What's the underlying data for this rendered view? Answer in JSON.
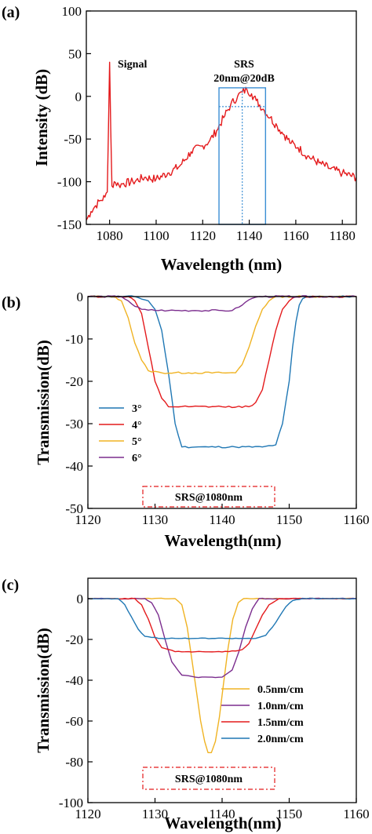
{
  "chart_data": [
    {
      "type": "line",
      "panel_label": "(a)",
      "xlabel": "Wavelength (nm)",
      "ylabel": "Intensity (dB)",
      "xlim": [
        1070,
        1186
      ],
      "ylim": [
        -150,
        100
      ],
      "xticks": [
        1080,
        1100,
        1120,
        1140,
        1160,
        1180
      ],
      "yticks": [
        -150,
        -100,
        -50,
        0,
        50,
        100
      ],
      "grid": false,
      "series": [
        {
          "color": "#e41a1c",
          "x": [
            1070,
            1072,
            1074,
            1076,
            1078,
            1079,
            1079.5,
            1080,
            1080.5,
            1081,
            1082,
            1084,
            1086,
            1090,
            1095,
            1100,
            1105,
            1110,
            1115,
            1120,
            1123,
            1126,
            1129,
            1132,
            1135,
            1137,
            1139,
            1141,
            1143,
            1146,
            1149,
            1152,
            1155,
            1158,
            1161,
            1165,
            1170,
            1175,
            1180,
            1186
          ],
          "y": [
            -145,
            -135,
            -128,
            -122,
            -118,
            -112,
            -40,
            40,
            -40,
            -105,
            -100,
            -104,
            -102,
            -100,
            -95,
            -97,
            -90,
            -82,
            -65,
            -58,
            -52,
            -40,
            -25,
            -10,
            0,
            5,
            8,
            3,
            -5,
            -15,
            -25,
            -35,
            -45,
            -55,
            -60,
            -70,
            -78,
            -85,
            -90,
            -95
          ]
        }
      ],
      "annotations": [
        "Signal",
        "SRS",
        "20nm@20dB"
      ],
      "box_nm": [
        1127,
        1147
      ],
      "center_nm": 1137,
      "dashed_level_db": -12
    },
    {
      "type": "line",
      "panel_label": "(b)",
      "xlabel": "Wavelength(nm)",
      "ylabel": "Transmission(dB)",
      "xlim": [
        1120,
        1160
      ],
      "ylim": [
        -50,
        0
      ],
      "xticks": [
        1120,
        1130,
        1140,
        1150,
        1160
      ],
      "yticks": [
        0,
        -10,
        -20,
        -30,
        -40,
        -50
      ],
      "grid": false,
      "legend_position": "left-middle",
      "series": [
        {
          "name": "3°",
          "color": "#1f77b4",
          "x": [
            1120,
            1127,
            1129,
            1130,
            1131,
            1132,
            1133,
            1134,
            1138,
            1142,
            1146,
            1148,
            1149,
            1150,
            1150.5,
            1151,
            1151.5,
            1152,
            1153,
            1160
          ],
          "y": [
            0,
            0,
            -1,
            -3,
            -8,
            -18,
            -30,
            -35.5,
            -35.5,
            -35.5,
            -35.5,
            -35,
            -30,
            -20,
            -12,
            -6,
            -2,
            -0.5,
            0,
            0
          ]
        },
        {
          "name": "4°",
          "color": "#e41a1c",
          "x": [
            1120,
            1126,
            1127,
            1128,
            1129,
            1130,
            1131,
            1132,
            1135,
            1140,
            1144,
            1145,
            1146,
            1147,
            1148,
            1149,
            1150,
            1151,
            1160
          ],
          "y": [
            0,
            0,
            -1,
            -4,
            -12,
            -20,
            -24,
            -26,
            -26,
            -26,
            -26,
            -25,
            -22,
            -15,
            -8,
            -3,
            -1,
            0,
            0
          ]
        },
        {
          "name": "5°",
          "color": "#f0b323",
          "x": [
            1120,
            1124,
            1125,
            1126,
            1127,
            1128,
            1129,
            1131,
            1135,
            1140,
            1142,
            1143,
            1144,
            1145,
            1146,
            1147,
            1148,
            1160
          ],
          "y": [
            0,
            0,
            -1,
            -5,
            -11,
            -15,
            -17.5,
            -18,
            -18,
            -18,
            -18,
            -16,
            -12,
            -7,
            -3,
            -1,
            0,
            0
          ]
        },
        {
          "name": "6°",
          "color": "#7b2d8e",
          "x": [
            1120,
            1125,
            1126,
            1127,
            1128,
            1129,
            1132,
            1136,
            1140,
            1141.5,
            1142.5,
            1143.5,
            1144.5,
            1145.5,
            1160
          ],
          "y": [
            0,
            0,
            -1,
            -2.3,
            -3,
            -3.2,
            -3.3,
            -3.3,
            -3.3,
            -3.3,
            -2.5,
            -1.3,
            -0.4,
            0,
            0
          ]
        }
      ],
      "annotation": "SRS@1080nm",
      "box_nm": [
        1128,
        1148
      ]
    },
    {
      "type": "line",
      "panel_label": "(c)",
      "xlabel": "Wavelength(nm)",
      "ylabel": "Transmission(dB)",
      "xlim": [
        1120,
        1160
      ],
      "ylim": [
        -100,
        10
      ],
      "xticks": [
        1120,
        1130,
        1140,
        1150,
        1160
      ],
      "yticks": [
        0,
        -20,
        -40,
        -60,
        -80,
        -100
      ],
      "grid": false,
      "legend_position": "bottom-right",
      "series": [
        {
          "name": "0.5nm/cm",
          "color": "#f0b323",
          "x": [
            1120,
            1133,
            1134,
            1134.8,
            1135.5,
            1136.2,
            1136.8,
            1137.4,
            1137.9,
            1138.4,
            1139,
            1139.6,
            1140.2,
            1140.9,
            1141.6,
            1142.4,
            1143.2,
            1160
          ],
          "y": [
            0,
            0,
            -3,
            -14,
            -30,
            -46,
            -60,
            -70,
            -75.5,
            -75.5,
            -70,
            -58,
            -42,
            -24,
            -10,
            -2,
            0,
            0
          ]
        },
        {
          "name": "1.0nm/cm",
          "color": "#7b2d8e",
          "x": [
            1120,
            1128.5,
            1129.5,
            1130.5,
            1131.5,
            1132.5,
            1134,
            1136,
            1138,
            1140,
            1141.5,
            1142.5,
            1143.5,
            1144.5,
            1145.5,
            1160
          ],
          "y": [
            0,
            0,
            -2,
            -8,
            -20,
            -31,
            -37.5,
            -38.5,
            -38.5,
            -38.5,
            -35,
            -26,
            -14,
            -5,
            0,
            0
          ]
        },
        {
          "name": "1.5nm/cm",
          "color": "#e41a1c",
          "x": [
            1120,
            1127,
            1128,
            1129,
            1130,
            1131,
            1133,
            1137,
            1141,
            1143,
            1144,
            1145,
            1146,
            1147,
            1148.5,
            1160
          ],
          "y": [
            0,
            0,
            -3,
            -10,
            -19,
            -24,
            -26,
            -26,
            -26,
            -25,
            -22,
            -15,
            -8,
            -3,
            0,
            0
          ]
        },
        {
          "name": "2.0nm/cm",
          "color": "#1f77b4",
          "x": [
            1120,
            1124.5,
            1125.5,
            1126.5,
            1127.5,
            1128.5,
            1131,
            1136,
            1141,
            1145,
            1146.5,
            1147.5,
            1148.5,
            1149.5,
            1150.5,
            1152,
            1160
          ],
          "y": [
            0,
            0,
            -3,
            -9,
            -15,
            -18.5,
            -19.5,
            -19.5,
            -19.5,
            -19.5,
            -18,
            -14,
            -9,
            -4,
            -1,
            0,
            0
          ]
        }
      ],
      "annotation": "SRS@1080nm",
      "box_nm": [
        1128,
        1148
      ]
    }
  ]
}
